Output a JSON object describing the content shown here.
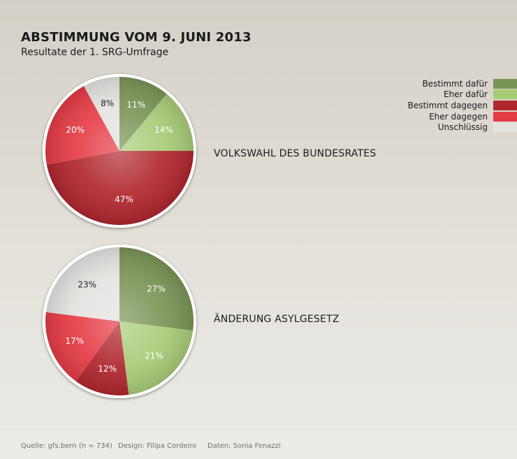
{
  "header": {
    "title": "ABSTIMMUNG VOM 9. JUNI 2013",
    "subtitle": "Resultate der 1. SRG-Umfrage"
  },
  "legend": [
    {
      "label": "Bestimmt dafür",
      "color": "#7a9456"
    },
    {
      "label": "Eher dafür",
      "color": "#a9cc78"
    },
    {
      "label": "Bestimmt dagegen",
      "color": "#b0262e"
    },
    {
      "label": "Eher dagegen",
      "color": "#e53b44"
    },
    {
      "label": "Unschlüssig",
      "color": "#e4e3e0"
    }
  ],
  "chart_data": [
    {
      "type": "pie",
      "title": "VOLKSWAHL DES BUNDESRATES",
      "categories": [
        "Bestimmt dafür",
        "Eher dafür",
        "Bestimmt dagegen",
        "Eher dagegen",
        "Unschlüssig"
      ],
      "values": [
        11,
        14,
        47,
        20,
        8
      ],
      "labels": [
        "11%",
        "14%",
        "47%",
        "20%",
        "8%"
      ]
    },
    {
      "type": "pie",
      "title": "ÄNDERUNG ASYLGESETZ",
      "categories": [
        "Bestimmt dafür",
        "Eher dafür",
        "Bestimmt dagegen",
        "Eher dagegen",
        "Unschlüssig"
      ],
      "values": [
        27,
        21,
        12,
        17,
        23
      ],
      "labels": [
        "27%",
        "21%",
        "12%",
        "17%",
        "23%"
      ]
    }
  ],
  "footer": {
    "source": "Quelle: gfs.bern (n = 734)",
    "design": "Design: Filipa Cordeiro",
    "data": "Daten: Sonia Fenazzi"
  }
}
